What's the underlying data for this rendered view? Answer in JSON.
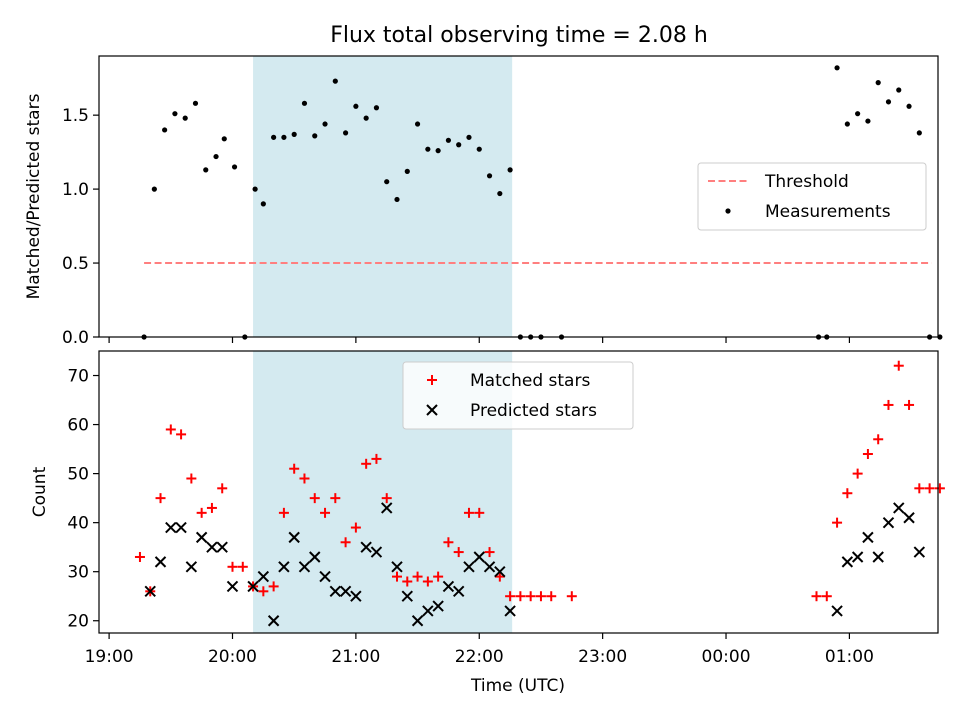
{
  "chart_data": [
    {
      "type": "scatter",
      "title": "Flux total observing time = 2.08 h",
      "ylabel": "Matched/Predicted stars",
      "xlabel": "",
      "xlim": [
        "19:00",
        "01:45"
      ],
      "ylim": [
        0,
        1.9
      ],
      "yticks": [
        "0.0",
        "0.5",
        "1.0",
        "1.5"
      ],
      "xtick_labels_visible": false,
      "shaded_region": {
        "start": "20:10",
        "end": "22:16",
        "color": "#d4eaf0"
      },
      "legend": {
        "position": "center-right",
        "entries": [
          "Threshold",
          "Measurements"
        ]
      },
      "threshold": {
        "name": "Threshold",
        "value": 0.5,
        "x_start": "19:17",
        "x_end": "01:40",
        "color": "#ff7f7f",
        "style": "dashed"
      },
      "series": [
        {
          "name": "Measurements",
          "color": "#000000",
          "marker": "dot",
          "points": [
            [
              "19:17",
              0.0
            ],
            [
              "19:22",
              1.0
            ],
            [
              "19:27",
              1.4
            ],
            [
              "19:32",
              1.51
            ],
            [
              "19:37",
              1.48
            ],
            [
              "19:42",
              1.58
            ],
            [
              "19:47",
              1.13
            ],
            [
              "19:52",
              1.22
            ],
            [
              "19:56",
              1.34
            ],
            [
              "20:01",
              1.15
            ],
            [
              "20:06",
              0.0
            ],
            [
              "20:11",
              1.0
            ],
            [
              "20:15",
              0.9
            ],
            [
              "20:20",
              1.35
            ],
            [
              "20:25",
              1.35
            ],
            [
              "20:30",
              1.37
            ],
            [
              "20:35",
              1.58
            ],
            [
              "20:40",
              1.36
            ],
            [
              "20:45",
              1.44
            ],
            [
              "20:50",
              1.73
            ],
            [
              "20:55",
              1.38
            ],
            [
              "21:00",
              1.56
            ],
            [
              "21:05",
              1.48
            ],
            [
              "21:10",
              1.55
            ],
            [
              "21:15",
              1.05
            ],
            [
              "21:20",
              0.93
            ],
            [
              "21:25",
              1.12
            ],
            [
              "21:30",
              1.44
            ],
            [
              "21:35",
              1.27
            ],
            [
              "21:40",
              1.26
            ],
            [
              "21:45",
              1.33
            ],
            [
              "21:50",
              1.3
            ],
            [
              "21:55",
              1.35
            ],
            [
              "22:00",
              1.27
            ],
            [
              "22:05",
              1.09
            ],
            [
              "22:10",
              0.97
            ],
            [
              "22:15",
              1.13
            ],
            [
              "22:20",
              0.0
            ],
            [
              "22:25",
              0.0
            ],
            [
              "22:30",
              0.0
            ],
            [
              "22:40",
              0.0
            ],
            [
              "00:45",
              0.0
            ],
            [
              "00:49",
              0.0
            ],
            [
              "00:54",
              1.82
            ],
            [
              "00:59",
              1.44
            ],
            [
              "01:04",
              1.51
            ],
            [
              "01:09",
              1.46
            ],
            [
              "01:14",
              1.72
            ],
            [
              "01:19",
              1.59
            ],
            [
              "01:24",
              1.67
            ],
            [
              "01:29",
              1.56
            ],
            [
              "01:34",
              1.38
            ],
            [
              "01:39",
              0.0
            ],
            [
              "01:44",
              0.0
            ]
          ]
        }
      ]
    },
    {
      "type": "scatter",
      "title": "",
      "ylabel": "Count",
      "xlabel": "Time (UTC)",
      "xlim": [
        "19:00",
        "01:45"
      ],
      "ylim": [
        17.5,
        75
      ],
      "yticks": [
        "20",
        "30",
        "40",
        "50",
        "60",
        "70"
      ],
      "xticks": [
        "19:00",
        "20:00",
        "21:00",
        "22:00",
        "23:00",
        "00:00",
        "01:00"
      ],
      "shaded_region": {
        "start": "20:10",
        "end": "22:16",
        "color": "#d4eaf0"
      },
      "legend": {
        "position": "top-center",
        "entries": [
          "Matched stars",
          "Predicted stars"
        ]
      },
      "series": [
        {
          "name": "Matched stars",
          "color": "#ff0000",
          "marker": "plus",
          "points": [
            [
              "19:15",
              33
            ],
            [
              "19:20",
              26
            ],
            [
              "19:25",
              45
            ],
            [
              "19:30",
              59
            ],
            [
              "19:35",
              58
            ],
            [
              "19:40",
              49
            ],
            [
              "19:45",
              42
            ],
            [
              "19:50",
              43
            ],
            [
              "19:55",
              47
            ],
            [
              "20:00",
              31
            ],
            [
              "20:05",
              31
            ],
            [
              "20:10",
              27
            ],
            [
              "20:15",
              26
            ],
            [
              "20:20",
              27
            ],
            [
              "20:25",
              42
            ],
            [
              "20:30",
              51
            ],
            [
              "20:35",
              49
            ],
            [
              "20:40",
              45
            ],
            [
              "20:45",
              42
            ],
            [
              "20:50",
              45
            ],
            [
              "20:55",
              36
            ],
            [
              "21:00",
              39
            ],
            [
              "21:05",
              52
            ],
            [
              "21:10",
              53
            ],
            [
              "21:15",
              45
            ],
            [
              "21:20",
              29
            ],
            [
              "21:25",
              28
            ],
            [
              "21:30",
              29
            ],
            [
              "21:35",
              28
            ],
            [
              "21:40",
              29
            ],
            [
              "21:45",
              36
            ],
            [
              "21:50",
              34
            ],
            [
              "21:55",
              42
            ],
            [
              "22:00",
              42
            ],
            [
              "22:05",
              34
            ],
            [
              "22:10",
              29
            ],
            [
              "22:15",
              25
            ],
            [
              "22:20",
              25
            ],
            [
              "22:25",
              25
            ],
            [
              "22:30",
              25
            ],
            [
              "22:35",
              25
            ],
            [
              "22:45",
              25
            ],
            [
              "00:44",
              25
            ],
            [
              "00:49",
              25
            ],
            [
              "00:54",
              40
            ],
            [
              "00:59",
              46
            ],
            [
              "01:04",
              50
            ],
            [
              "01:09",
              54
            ],
            [
              "01:14",
              57
            ],
            [
              "01:19",
              64
            ],
            [
              "01:24",
              72
            ],
            [
              "01:29",
              64
            ],
            [
              "01:34",
              47
            ],
            [
              "01:39",
              47
            ],
            [
              "01:44",
              47
            ]
          ]
        },
        {
          "name": "Predicted stars",
          "color": "#000000",
          "marker": "x",
          "points": [
            [
              "19:20",
              26
            ],
            [
              "19:25",
              32
            ],
            [
              "19:30",
              39
            ],
            [
              "19:35",
              39
            ],
            [
              "19:40",
              31
            ],
            [
              "19:45",
              37
            ],
            [
              "19:50",
              35
            ],
            [
              "19:55",
              35
            ],
            [
              "20:00",
              27
            ],
            [
              "20:10",
              27
            ],
            [
              "20:15",
              29
            ],
            [
              "20:20",
              20
            ],
            [
              "20:25",
              31
            ],
            [
              "20:30",
              37
            ],
            [
              "20:35",
              31
            ],
            [
              "20:40",
              33
            ],
            [
              "20:45",
              29
            ],
            [
              "20:50",
              26
            ],
            [
              "20:55",
              26
            ],
            [
              "21:00",
              25
            ],
            [
              "21:05",
              35
            ],
            [
              "21:10",
              34
            ],
            [
              "21:15",
              43
            ],
            [
              "21:20",
              31
            ],
            [
              "21:25",
              25
            ],
            [
              "21:30",
              20
            ],
            [
              "21:35",
              22
            ],
            [
              "21:40",
              23
            ],
            [
              "21:45",
              27
            ],
            [
              "21:50",
              26
            ],
            [
              "21:55",
              31
            ],
            [
              "22:00",
              33
            ],
            [
              "22:05",
              31
            ],
            [
              "22:10",
              30
            ],
            [
              "22:15",
              22
            ],
            [
              "00:54",
              22
            ],
            [
              "00:59",
              32
            ],
            [
              "01:04",
              33
            ],
            [
              "01:09",
              37
            ],
            [
              "01:14",
              33
            ],
            [
              "01:19",
              40
            ],
            [
              "01:24",
              43
            ],
            [
              "01:29",
              41
            ],
            [
              "01:34",
              34
            ]
          ]
        }
      ]
    }
  ]
}
